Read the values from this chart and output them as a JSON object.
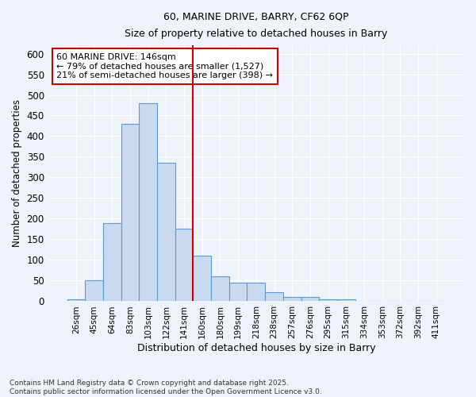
{
  "title1": "60, MARINE DRIVE, BARRY, CF62 6QP",
  "title2": "Size of property relative to detached houses in Barry",
  "xlabel": "Distribution of detached houses by size in Barry",
  "ylabel": "Number of detached properties",
  "categories": [
    "26sqm",
    "45sqm",
    "64sqm",
    "83sqm",
    "103sqm",
    "122sqm",
    "141sqm",
    "160sqm",
    "180sqm",
    "199sqm",
    "218sqm",
    "238sqm",
    "257sqm",
    "276sqm",
    "295sqm",
    "315sqm",
    "334sqm",
    "353sqm",
    "372sqm",
    "392sqm",
    "411sqm"
  ],
  "values": [
    5,
    50,
    190,
    430,
    480,
    335,
    175,
    110,
    60,
    45,
    45,
    22,
    10,
    10,
    5,
    4,
    1,
    1,
    0,
    1,
    0
  ],
  "bar_color": "#c8d9f0",
  "bar_edge_color": "#5b9bd5",
  "vline_x": 6.5,
  "vline_color": "#cc0000",
  "annotation_title": "60 MARINE DRIVE: 146sqm",
  "annotation_line1": "← 79% of detached houses are smaller (1,527)",
  "annotation_line2": "21% of semi-detached houses are larger (398) →",
  "annotation_box_color": "#ffffff",
  "annotation_box_edge": "#cc0000",
  "ylim": [
    0,
    620
  ],
  "yticks": [
    0,
    50,
    100,
    150,
    200,
    250,
    300,
    350,
    400,
    450,
    500,
    550,
    600
  ],
  "footer1": "Contains HM Land Registry data © Crown copyright and database right 2025.",
  "footer2": "Contains public sector information licensed under the Open Government Licence v3.0.",
  "bg_color": "#eef2f9",
  "grid_color": "#ffffff"
}
